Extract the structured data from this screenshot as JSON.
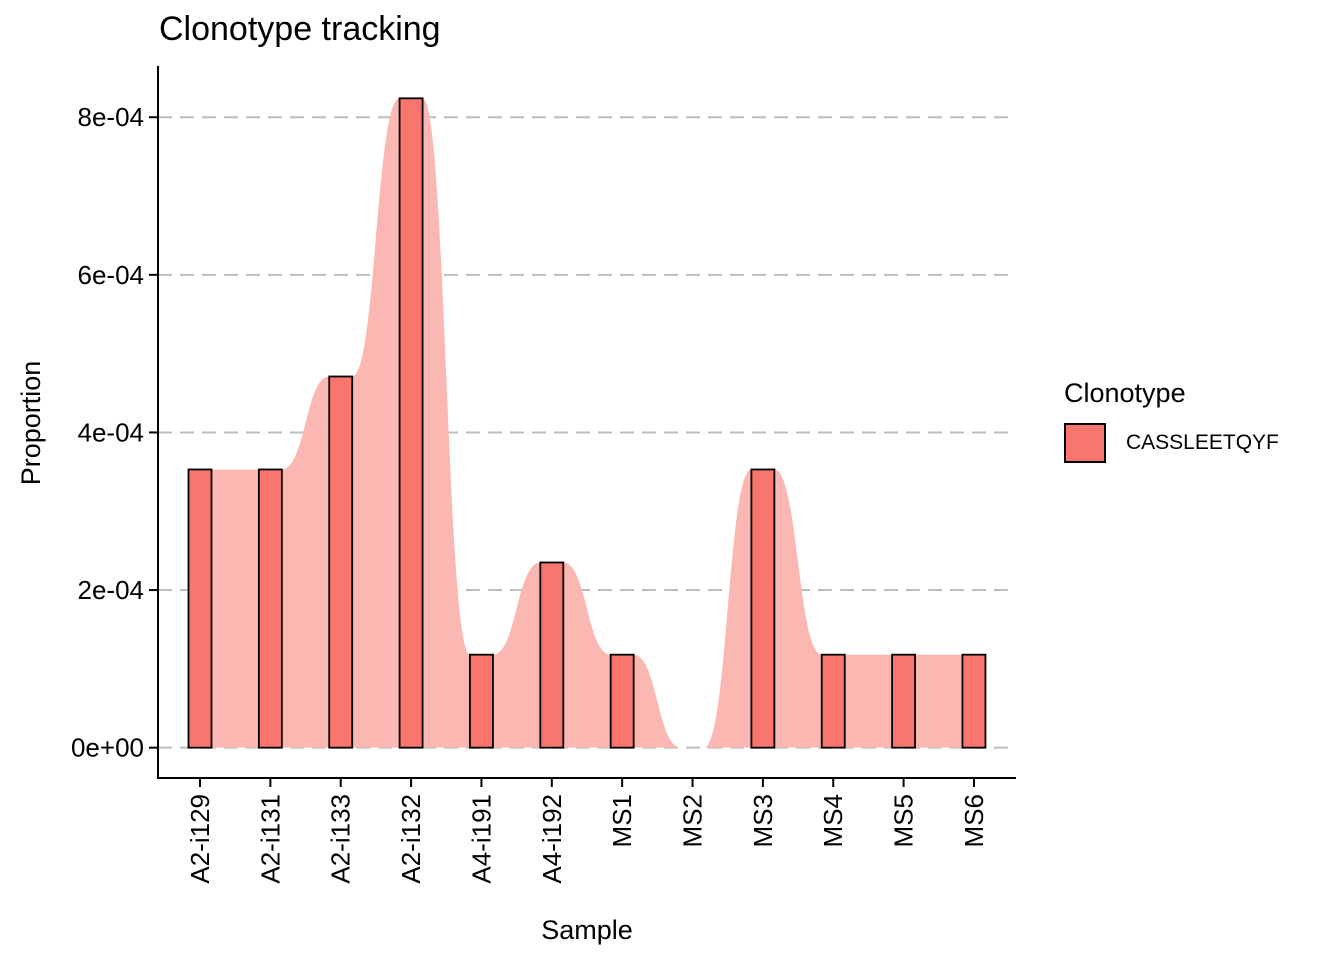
{
  "chart_data": {
    "type": "bar",
    "title": "Clonotype tracking",
    "xlabel": "Sample",
    "ylabel": "Proportion",
    "categories": [
      "A2-i129",
      "A2-i131",
      "A2-i133",
      "A2-i132",
      "A4-i191",
      "A4-i192",
      "MS1",
      "MS2",
      "MS3",
      "MS4",
      "MS5",
      "MS6"
    ],
    "series": [
      {
        "name": "CASSLEETQYF",
        "values": [
          0.000353,
          0.000353,
          0.000471,
          0.000824,
          0.000118,
          0.000235,
          0.000118,
          0.0,
          0.000353,
          0.000118,
          0.000118,
          0.000118
        ]
      }
    ],
    "yticks": [
      "0e+00",
      "2e-04",
      "4e-04",
      "6e-04",
      "8e-04"
    ],
    "ytick_values": [
      0,
      0.0002,
      0.0004,
      0.0006,
      0.0008
    ],
    "ylim": [
      -3.85e-05,
      0.000865
    ],
    "legend_title": "Clonotype",
    "legend_position": "right",
    "grid": "horizontal-dashed",
    "colors": {
      "bar": "#F8766D",
      "area": "#FBB8B3",
      "grid": "#BEBEBE"
    }
  }
}
